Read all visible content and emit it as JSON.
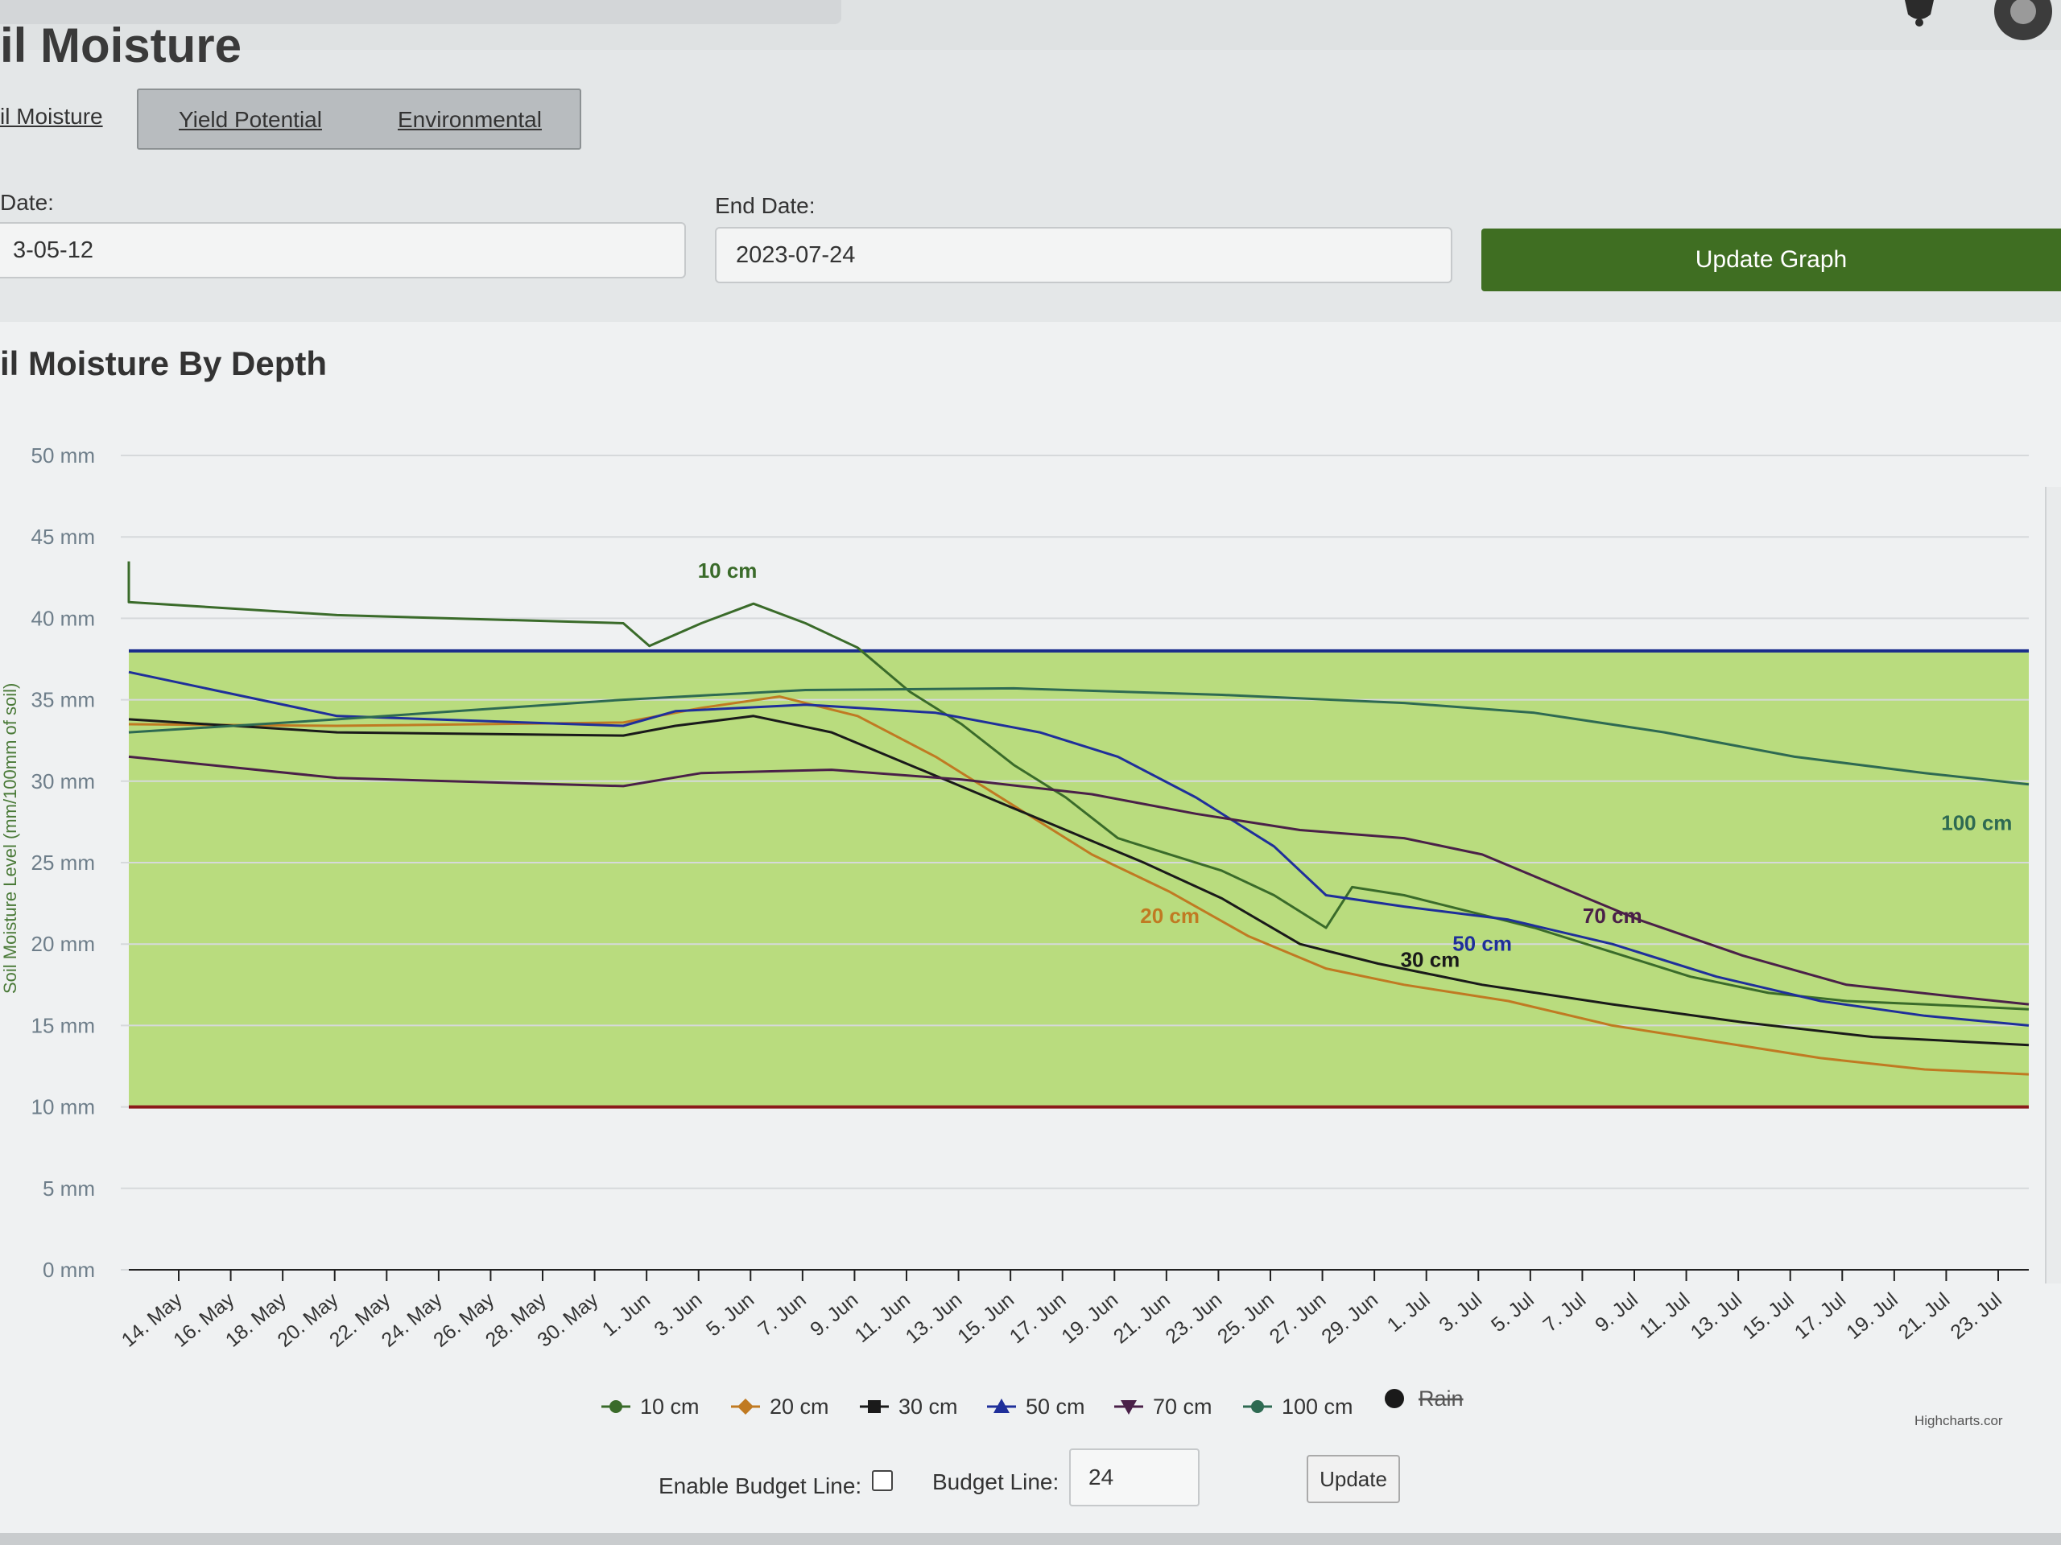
{
  "header": {
    "page_title": "il Moisture"
  },
  "tabs": [
    {
      "label": "il Moisture",
      "active": true
    },
    {
      "label": "Yield Potential",
      "active": false
    },
    {
      "label": "Environmental",
      "active": false
    }
  ],
  "date_form": {
    "start_label": "Date:",
    "start_value": "3-05-12",
    "end_label": "End Date:",
    "end_value": "2023-07-24",
    "update_button": "Update Graph"
  },
  "chart_data": {
    "type": "line",
    "title": "il Moisture By Depth",
    "ylabel": "Soil Moisture Level (mm/100mm of soil)",
    "ylim": [
      0,
      50
    ],
    "y_ticks": [
      "0 mm",
      "5 mm",
      "10 mm",
      "15 mm",
      "20 mm",
      "25 mm",
      "30 mm",
      "35 mm",
      "40 mm",
      "45 mm",
      "50 mm"
    ],
    "x_ticks": [
      "14. May",
      "16. May",
      "18. May",
      "20. May",
      "22. May",
      "24. May",
      "26. May",
      "28. May",
      "30. May",
      "1. Jun",
      "3. Jun",
      "5. Jun",
      "7. Jun",
      "9. Jun",
      "11. Jun",
      "13. Jun",
      "15. Jun",
      "17. Jun",
      "19. Jun",
      "21. Jun",
      "23. Jun",
      "25. Jun",
      "27. Jun",
      "29. Jun",
      "1. Jul",
      "3. Jul",
      "5. Jul",
      "7. Jul",
      "9. Jul",
      "11. Jul",
      "13. Jul",
      "15. Jul",
      "17. Jul",
      "19. Jul",
      "21. Jul",
      "23. Jul"
    ],
    "x_start": "2023-05-12",
    "x_end": "2023-07-24",
    "bands": [
      {
        "from": 10,
        "to": 38,
        "color": "#b9dc7e"
      }
    ],
    "plot_lines": [
      {
        "value": 38,
        "color": "#1a2c8c"
      },
      {
        "value": 10,
        "color": "#8b1a1a"
      }
    ],
    "series": [
      {
        "name": "10 cm",
        "color": "#3a6b2a",
        "label": "10 cm",
        "marker": "circle",
        "points": [
          [
            "2023-05-12",
            43.5
          ],
          [
            "2023-05-12",
            41
          ],
          [
            "2023-05-20",
            40.2
          ],
          [
            "2023-05-31",
            39.7
          ],
          [
            "2023-06-01",
            38.3
          ],
          [
            "2023-06-03",
            39.7
          ],
          [
            "2023-06-05",
            40.9
          ],
          [
            "2023-06-07",
            39.7
          ],
          [
            "2023-06-09",
            38.2
          ],
          [
            "2023-06-11",
            35.5
          ],
          [
            "2023-06-13",
            33.5
          ],
          [
            "2023-06-15",
            31
          ],
          [
            "2023-06-17",
            29
          ],
          [
            "2023-06-19",
            26.5
          ],
          [
            "2023-06-21",
            25.5
          ],
          [
            "2023-06-23",
            24.5
          ],
          [
            "2023-06-25",
            23
          ],
          [
            "2023-06-27",
            21
          ],
          [
            "2023-06-28",
            23.5
          ],
          [
            "2023-06-30",
            23
          ],
          [
            "2023-07-02",
            22.2
          ],
          [
            "2023-07-05",
            21
          ],
          [
            "2023-07-08",
            19.5
          ],
          [
            "2023-07-11",
            18
          ],
          [
            "2023-07-14",
            17
          ],
          [
            "2023-07-17",
            16.5
          ],
          [
            "2023-07-20",
            16.3
          ],
          [
            "2023-07-24",
            16
          ]
        ]
      },
      {
        "name": "20 cm",
        "color": "#c07a22",
        "label": "20 cm",
        "marker": "diamond",
        "points": [
          [
            "2023-05-12",
            33.5
          ],
          [
            "2023-05-20",
            33.4
          ],
          [
            "2023-05-31",
            33.6
          ],
          [
            "2023-06-03",
            34.5
          ],
          [
            "2023-06-06",
            35.2
          ],
          [
            "2023-06-09",
            34
          ],
          [
            "2023-06-12",
            31.5
          ],
          [
            "2023-06-15",
            28.5
          ],
          [
            "2023-06-18",
            25.5
          ],
          [
            "2023-06-21",
            23.2
          ],
          [
            "2023-06-24",
            20.5
          ],
          [
            "2023-06-27",
            18.5
          ],
          [
            "2023-06-30",
            17.5
          ],
          [
            "2023-07-04",
            16.5
          ],
          [
            "2023-07-08",
            15
          ],
          [
            "2023-07-12",
            14
          ],
          [
            "2023-07-16",
            13
          ],
          [
            "2023-07-20",
            12.3
          ],
          [
            "2023-07-24",
            12
          ]
        ]
      },
      {
        "name": "30 cm",
        "color": "#1a1a1a",
        "label": "30 cm",
        "marker": "square",
        "points": [
          [
            "2023-05-12",
            33.8
          ],
          [
            "2023-05-20",
            33
          ],
          [
            "2023-05-31",
            32.8
          ],
          [
            "2023-06-02",
            33.4
          ],
          [
            "2023-06-05",
            34
          ],
          [
            "2023-06-08",
            33
          ],
          [
            "2023-06-11",
            31
          ],
          [
            "2023-06-14",
            29
          ],
          [
            "2023-06-17",
            27
          ],
          [
            "2023-06-20",
            25
          ],
          [
            "2023-06-23",
            22.8
          ],
          [
            "2023-06-26",
            20
          ],
          [
            "2023-06-29",
            18.8
          ],
          [
            "2023-07-03",
            17.5
          ],
          [
            "2023-07-08",
            16.3
          ],
          [
            "2023-07-13",
            15.2
          ],
          [
            "2023-07-18",
            14.3
          ],
          [
            "2023-07-24",
            13.8
          ]
        ]
      },
      {
        "name": "50 cm",
        "color": "#1f2f9a",
        "label": "50 cm",
        "marker": "triangle",
        "points": [
          [
            "2023-05-12",
            36.7
          ],
          [
            "2023-05-20",
            34
          ],
          [
            "2023-05-31",
            33.4
          ],
          [
            "2023-06-02",
            34.3
          ],
          [
            "2023-06-07",
            34.7
          ],
          [
            "2023-06-12",
            34.2
          ],
          [
            "2023-06-16",
            33
          ],
          [
            "2023-06-19",
            31.5
          ],
          [
            "2023-06-22",
            29
          ],
          [
            "2023-06-25",
            26
          ],
          [
            "2023-06-27",
            23
          ],
          [
            "2023-06-30",
            22.3
          ],
          [
            "2023-07-04",
            21.5
          ],
          [
            "2023-07-08",
            20
          ],
          [
            "2023-07-12",
            18
          ],
          [
            "2023-07-16",
            16.5
          ],
          [
            "2023-07-20",
            15.6
          ],
          [
            "2023-07-24",
            15
          ]
        ]
      },
      {
        "name": "70 cm",
        "color": "#4a2048",
        "label": "70 cm",
        "marker": "triangle-down",
        "points": [
          [
            "2023-05-12",
            31.5
          ],
          [
            "2023-05-20",
            30.2
          ],
          [
            "2023-05-31",
            29.7
          ],
          [
            "2023-06-03",
            30.5
          ],
          [
            "2023-06-08",
            30.7
          ],
          [
            "2023-06-13",
            30.1
          ],
          [
            "2023-06-18",
            29.2
          ],
          [
            "2023-06-22",
            28
          ],
          [
            "2023-06-26",
            27
          ],
          [
            "2023-06-30",
            26.5
          ],
          [
            "2023-07-03",
            25.5
          ],
          [
            "2023-07-06",
            23.5
          ],
          [
            "2023-07-09",
            21.5
          ],
          [
            "2023-07-13",
            19.3
          ],
          [
            "2023-07-17",
            17.5
          ],
          [
            "2023-07-21",
            16.8
          ],
          [
            "2023-07-24",
            16.3
          ]
        ]
      },
      {
        "name": "100 cm",
        "color": "#2e6a52",
        "label": "100 cm",
        "marker": "circle",
        "points": [
          [
            "2023-05-12",
            33
          ],
          [
            "2023-05-20",
            33.8
          ],
          [
            "2023-05-31",
            35
          ],
          [
            "2023-06-07",
            35.6
          ],
          [
            "2023-06-15",
            35.7
          ],
          [
            "2023-06-23",
            35.3
          ],
          [
            "2023-06-30",
            34.8
          ],
          [
            "2023-07-05",
            34.2
          ],
          [
            "2023-07-10",
            33
          ],
          [
            "2023-07-15",
            31.5
          ],
          [
            "2023-07-20",
            30.5
          ],
          [
            "2023-07-24",
            29.8
          ]
        ]
      }
    ],
    "legend": [
      "10 cm",
      "20 cm",
      "30 cm",
      "50 cm",
      "70 cm",
      "100 cm",
      "Rain"
    ],
    "legend_hidden": [
      "Rain"
    ],
    "credits": "Highcharts.cor"
  },
  "budget": {
    "enable_label": "Enable Budget Line:",
    "enabled": false,
    "line_label": "Budget Line:",
    "line_value": "24",
    "update_button": "Update"
  }
}
